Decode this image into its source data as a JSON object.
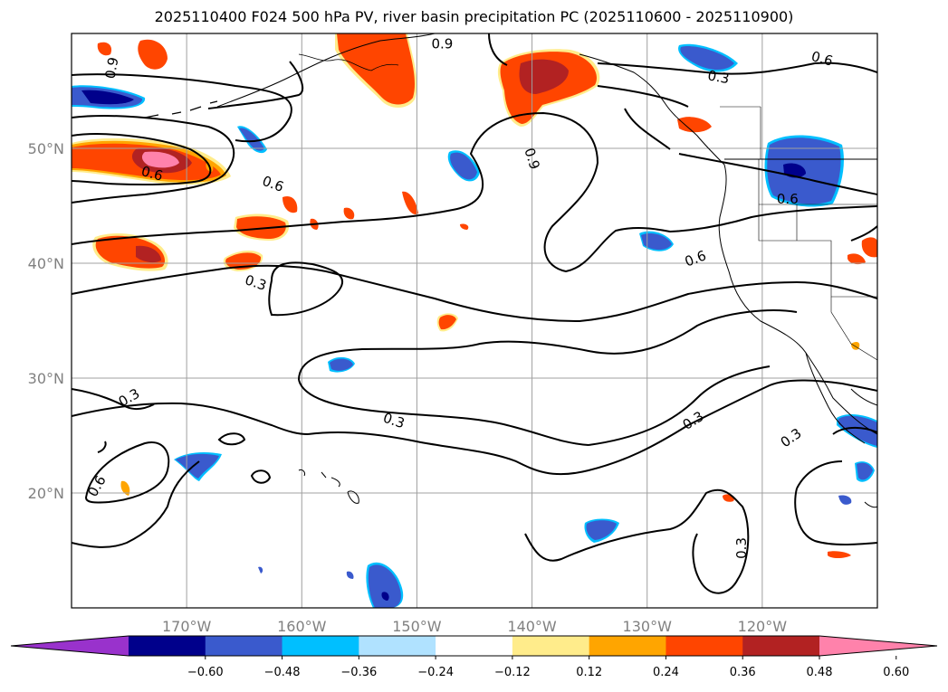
{
  "title": "2025110400 F024 500 hPa PV, river basin precipitation PC (2025110600 - 2025110900)",
  "map": {
    "lon_range": [
      -180,
      -110
    ],
    "lat_range": [
      10,
      60
    ],
    "lat_ticks": [
      {
        "value": 50,
        "label": "50°N"
      },
      {
        "value": 40,
        "label": "40°N"
      },
      {
        "value": 30,
        "label": "30°N"
      },
      {
        "value": 20,
        "label": "20°N"
      }
    ],
    "lon_ticks": [
      {
        "value": -170,
        "label": "170°W"
      },
      {
        "value": -160,
        "label": "160°W"
      },
      {
        "value": -150,
        "label": "150°W"
      },
      {
        "value": -140,
        "label": "140°W"
      },
      {
        "value": -130,
        "label": "130°W"
      },
      {
        "value": -120,
        "label": "120°W"
      }
    ],
    "contour_labels": [
      {
        "text": "0.3",
        "lon": -164.0,
        "lat": 38.3,
        "angle": 18
      },
      {
        "text": "0.3",
        "lon": -175.0,
        "lat": 28.3,
        "angle": -30
      },
      {
        "text": "0.3",
        "lon": -152.0,
        "lat": 26.3,
        "angle": 18
      },
      {
        "text": "0.3",
        "lon": -126.0,
        "lat": 26.3,
        "angle": -32
      },
      {
        "text": "0.3",
        "lon": -117.5,
        "lat": 24.8,
        "angle": -35
      },
      {
        "text": "0.3",
        "lon": -121.8,
        "lat": 15.2,
        "angle": -90
      },
      {
        "text": "0.3",
        "lon": -123.8,
        "lat": 56.2,
        "angle": 10
      },
      {
        "text": "0.6",
        "lon": -173.0,
        "lat": 47.8,
        "angle": 15
      },
      {
        "text": "0.6",
        "lon": -162.5,
        "lat": 46.9,
        "angle": 20
      },
      {
        "text": "0.6",
        "lon": -125.8,
        "lat": 40.4,
        "angle": -20
      },
      {
        "text": "0.6",
        "lon": -114.8,
        "lat": 57.8,
        "angle": 15
      },
      {
        "text": "0.6",
        "lon": -117.8,
        "lat": 45.6,
        "angle": 0
      },
      {
        "text": "0.6",
        "lon": -177.8,
        "lat": 20.6,
        "angle": -60
      },
      {
        "text": "0.9",
        "lon": -147.8,
        "lat": 59.1,
        "angle": 0
      },
      {
        "text": "0.9",
        "lon": -140.0,
        "lat": 49.1,
        "angle": 72
      },
      {
        "text": "0.9",
        "lon": -176.5,
        "lat": 57.0,
        "angle": -80
      }
    ]
  },
  "colorbar": {
    "levels": [
      "−0.60",
      "−0.48",
      "−0.36",
      "−0.24",
      "−0.12",
      "0.12",
      "0.24",
      "0.36",
      "0.48",
      "0.60"
    ],
    "colors": [
      "#9932cc",
      "#00008b",
      "#3a5acd",
      "#00bfff",
      "#b0e2ff",
      "#ffffff",
      "#ffec8b",
      "#ffa500",
      "#ff4500",
      "#b22222",
      "#ff82ab"
    ],
    "extend": "both"
  },
  "colors": {
    "contour": "#000000",
    "grid": "#a0a0a0",
    "coast": "#000000"
  }
}
